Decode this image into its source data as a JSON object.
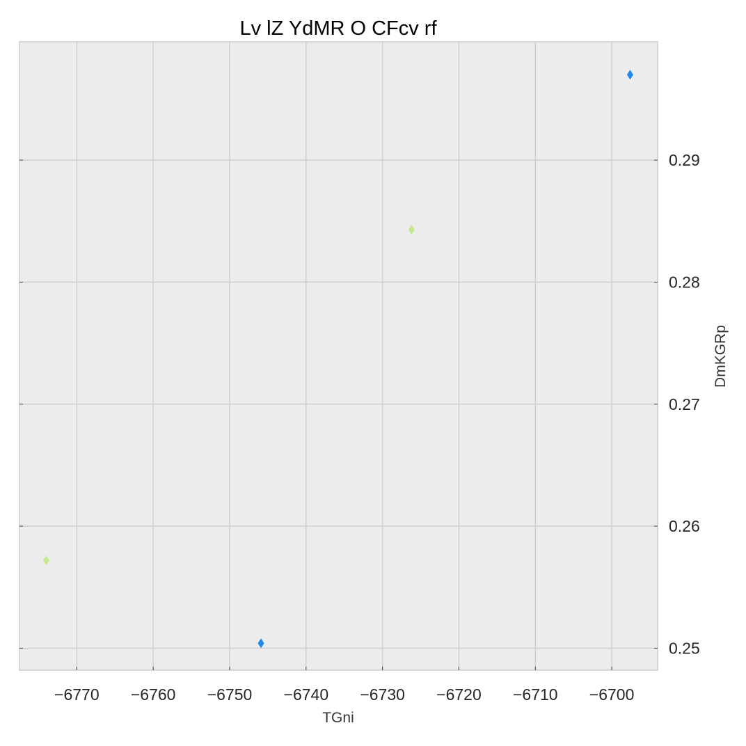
{
  "chart_data": {
    "type": "scatter",
    "title": "Lv lZ YdMR O CFcv rf",
    "xlabel": "TGni",
    "ylabel": "DmKGRp",
    "xlim": [
      -6777.5,
      -6694.0
    ],
    "ylim": [
      0.2482,
      0.2997
    ],
    "xticks": [
      -6770,
      -6760,
      -6750,
      -6740,
      -6730,
      -6720,
      -6710,
      -6700
    ],
    "xtick_labels": [
      "−6770",
      "−6760",
      "−6750",
      "−6740",
      "−6730",
      "−6720",
      "−6710",
      "−6700"
    ],
    "yticks": [
      0.25,
      0.26,
      0.27,
      0.28,
      0.29
    ],
    "ytick_labels": [
      "0.25",
      "0.26",
      "0.27",
      "0.28",
      "0.29"
    ],
    "y_axis_side": "right",
    "grid": true,
    "marker": "thin-diamond",
    "series": [
      {
        "color": "#1e88e5",
        "x": [
          -6745.9,
          -6697.6
        ],
        "y": [
          0.2504,
          0.297
        ]
      },
      {
        "color": "#c5e88c",
        "x": [
          -6774.0,
          -6726.2
        ],
        "y": [
          0.2572,
          0.2843
        ]
      }
    ]
  }
}
